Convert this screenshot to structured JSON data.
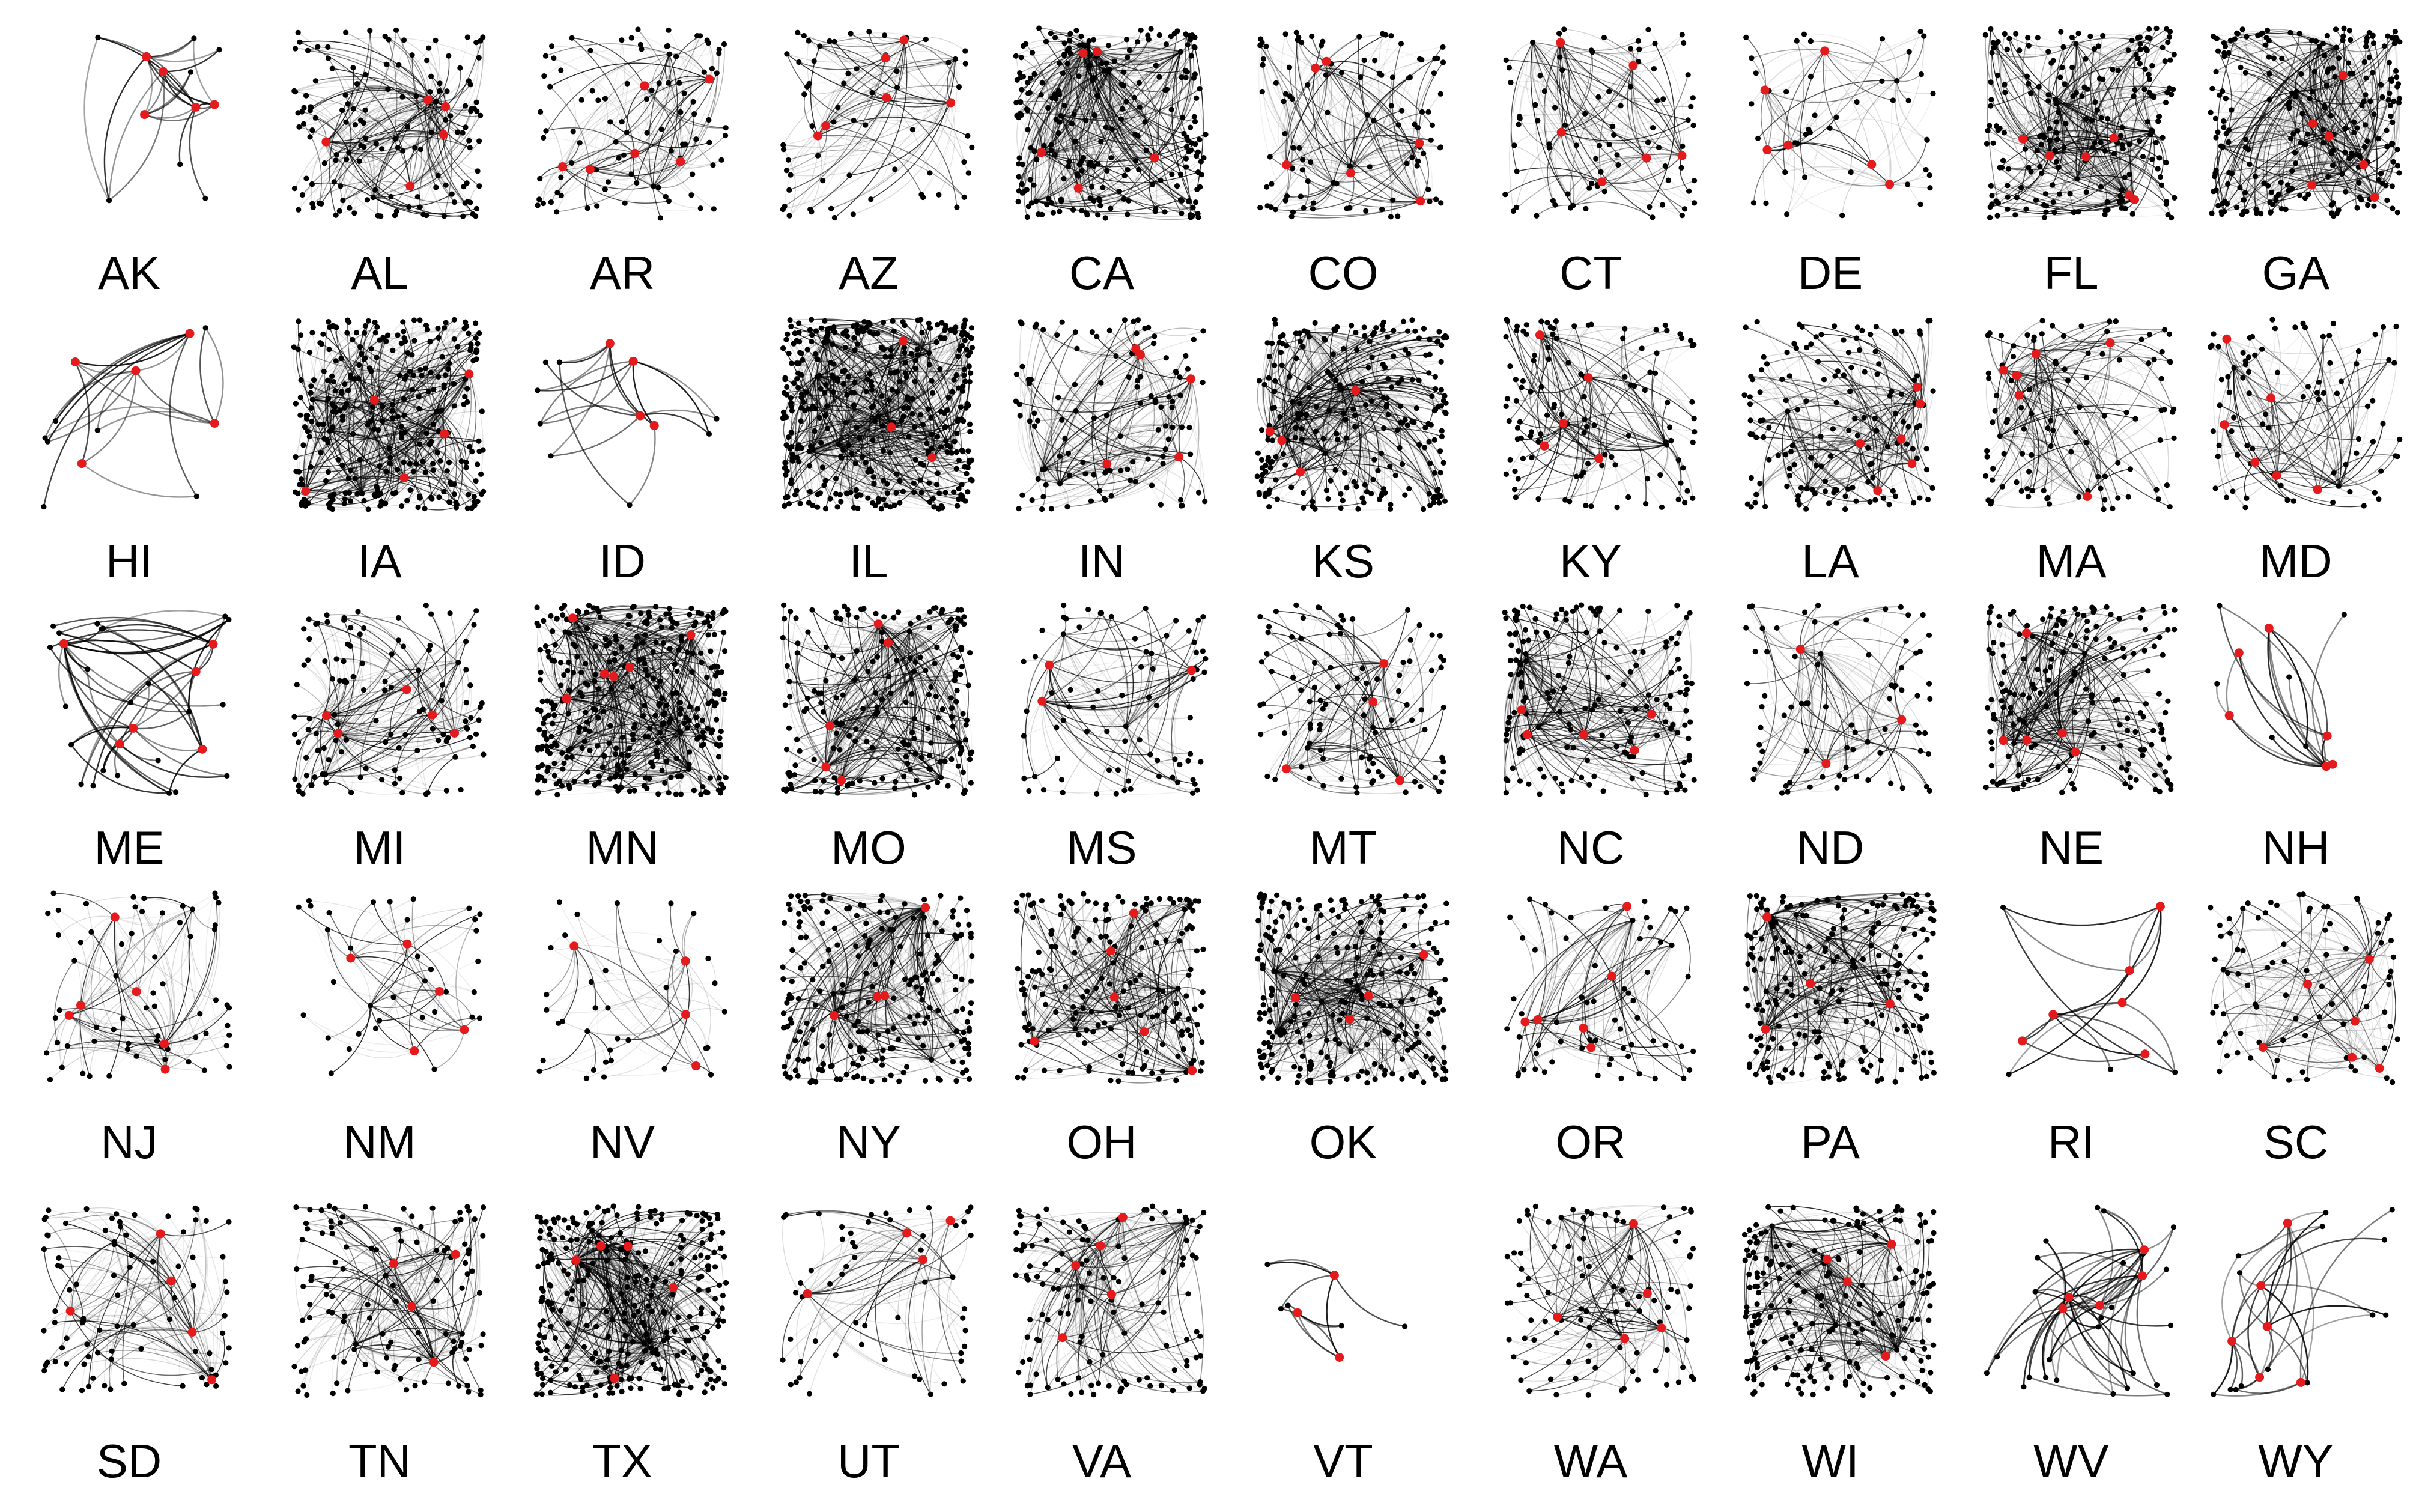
{
  "figure": {
    "background": "#ffffff",
    "node_color": "#000000",
    "highlight_color": "#e41a1c",
    "edge_color": "#000000"
  },
  "panels": [
    {
      "label": "AK",
      "nodes": 12,
      "highlighted_nodes": 5
    },
    {
      "label": "AL",
      "nodes": 150,
      "highlighted_nodes": 5
    },
    {
      "label": "AR",
      "nodes": 100,
      "highlighted_nodes": 6
    },
    {
      "label": "AZ",
      "nodes": 70,
      "highlighted_nodes": 6
    },
    {
      "label": "CA",
      "nodes": 250,
      "highlighted_nodes": 5
    },
    {
      "label": "CO",
      "nodes": 110,
      "highlighted_nodes": 6
    },
    {
      "label": "CT",
      "nodes": 90,
      "highlighted_nodes": 6
    },
    {
      "label": "DE",
      "nodes": 50,
      "highlighted_nodes": 6
    },
    {
      "label": "FL",
      "nodes": 220,
      "highlighted_nodes": 6
    },
    {
      "label": "GA",
      "nodes": 250,
      "highlighted_nodes": 6
    },
    {
      "label": "HI",
      "nodes": 12,
      "highlighted_nodes": 5
    },
    {
      "label": "IA",
      "nodes": 300,
      "highlighted_nodes": 5
    },
    {
      "label": "ID",
      "nodes": 12,
      "highlighted_nodes": 4
    },
    {
      "label": "IL",
      "nodes": 400,
      "highlighted_nodes": 3
    },
    {
      "label": "IN",
      "nodes": 120,
      "highlighted_nodes": 5
    },
    {
      "label": "KS",
      "nodes": 250,
      "highlighted_nodes": 4
    },
    {
      "label": "KY",
      "nodes": 120,
      "highlighted_nodes": 5
    },
    {
      "label": "LA",
      "nodes": 150,
      "highlighted_nodes": 6
    },
    {
      "label": "MA",
      "nodes": 110,
      "highlighted_nodes": 6
    },
    {
      "label": "MD",
      "nodes": 90,
      "highlighted_nodes": 6
    },
    {
      "label": "ME",
      "nodes": 30,
      "highlighted_nodes": 6
    },
    {
      "label": "MI",
      "nodes": 120,
      "highlighted_nodes": 5
    },
    {
      "label": "MN",
      "nodes": 350,
      "highlighted_nodes": 6
    },
    {
      "label": "MO",
      "nodes": 200,
      "highlighted_nodes": 5
    },
    {
      "label": "MS",
      "nodes": 80,
      "highlighted_nodes": 3
    },
    {
      "label": "MT",
      "nodes": 100,
      "highlighted_nodes": 4
    },
    {
      "label": "NC",
      "nodes": 170,
      "highlighted_nodes": 5
    },
    {
      "label": "ND",
      "nodes": 80,
      "highlighted_nodes": 3
    },
    {
      "label": "NE",
      "nodes": 180,
      "highlighted_nodes": 5
    },
    {
      "label": "NH",
      "nodes": 12,
      "highlighted_nodes": 6
    },
    {
      "label": "NJ",
      "nodes": 70,
      "highlighted_nodes": 6
    },
    {
      "label": "NM",
      "nodes": 40,
      "highlighted_nodes": 5
    },
    {
      "label": "NV",
      "nodes": 40,
      "highlighted_nodes": 4
    },
    {
      "label": "NY",
      "nodes": 220,
      "highlighted_nodes": 4
    },
    {
      "label": "OH",
      "nodes": 180,
      "highlighted_nodes": 6
    },
    {
      "label": "OK",
      "nodes": 250,
      "highlighted_nodes": 4
    },
    {
      "label": "OR",
      "nodes": 70,
      "highlighted_nodes": 6
    },
    {
      "label": "PA",
      "nodes": 220,
      "highlighted_nodes": 4
    },
    {
      "label": "RI",
      "nodes": 10,
      "highlighted_nodes": 6
    },
    {
      "label": "SC",
      "nodes": 90,
      "highlighted_nodes": 6
    },
    {
      "label": "SD",
      "nodes": 90,
      "highlighted_nodes": 5
    },
    {
      "label": "TN",
      "nodes": 120,
      "highlighted_nodes": 4
    },
    {
      "label": "TX",
      "nodes": 300,
      "highlighted_nodes": 5
    },
    {
      "label": "UT",
      "nodes": 60,
      "highlighted_nodes": 4
    },
    {
      "label": "VA",
      "nodes": 130,
      "highlighted_nodes": 5
    },
    {
      "label": "VT",
      "nodes": 8,
      "highlighted_nodes": 3
    },
    {
      "label": "WA",
      "nodes": 100,
      "highlighted_nodes": 5
    },
    {
      "label": "WI",
      "nodes": 200,
      "highlighted_nodes": 4
    },
    {
      "label": "WV",
      "nodes": 30,
      "highlighted_nodes": 5
    },
    {
      "label": "WY",
      "nodes": 20,
      "highlighted_nodes": 6
    }
  ]
}
